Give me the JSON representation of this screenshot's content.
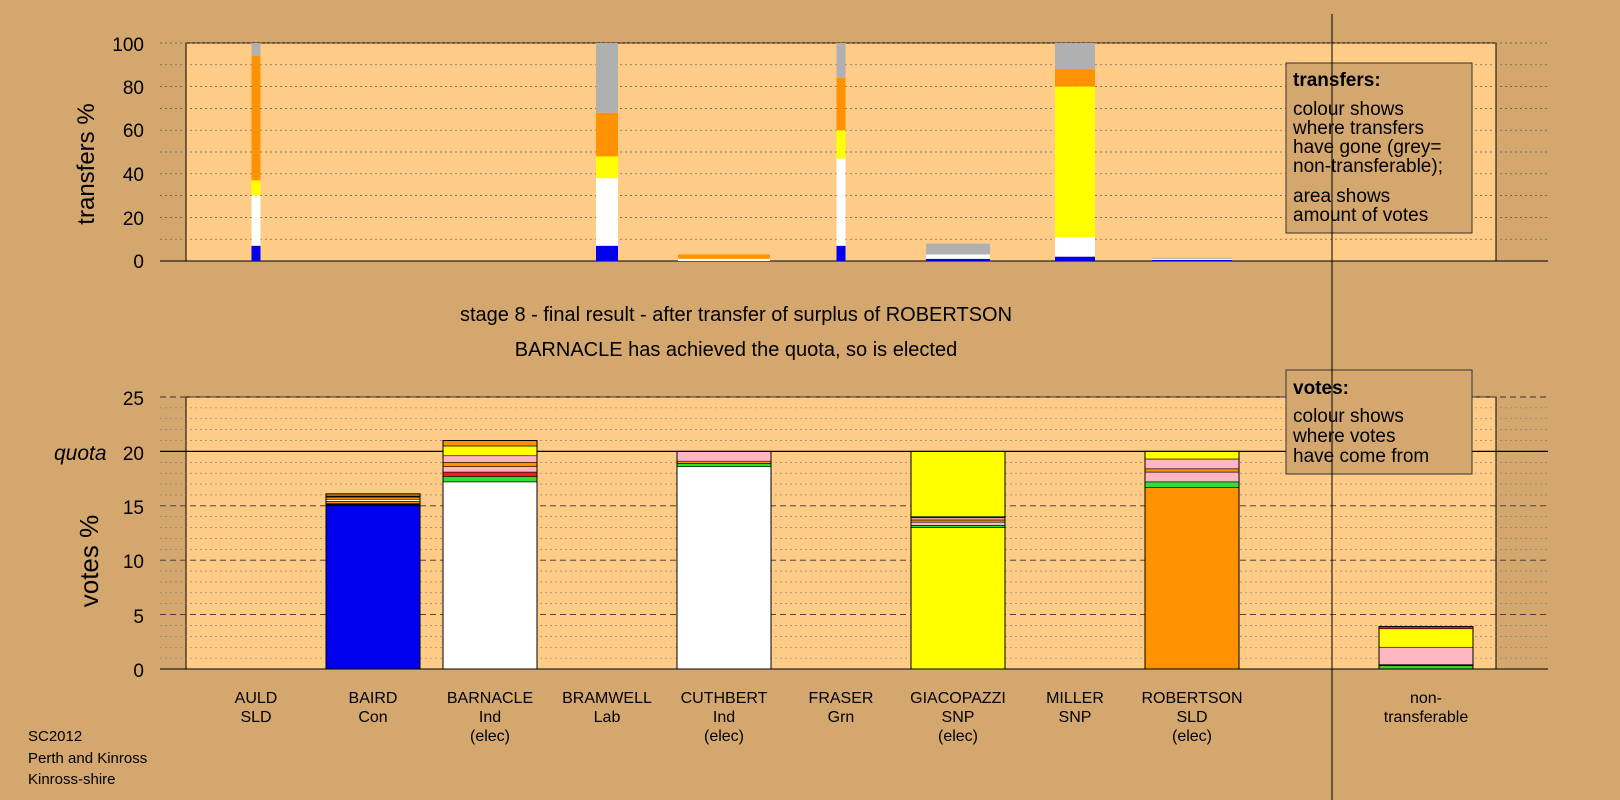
{
  "colors": {
    "background": "#d4a76f",
    "plot_bg": "#ffcc88",
    "box_bg": "#d4a76f",
    "Con": "#0000ee",
    "Ind": "#ffffff",
    "Lab": "#ff1a1a",
    "SNP": "#ffff00",
    "SLD": "#ff9200",
    "Grn": "#33dd33",
    "Pink": "#ffb6c1",
    "Grey": "#b0b0b0",
    "Black": "#000000"
  },
  "titles": {
    "stage": "stage 8 - final result - after transfer of surplus of ROBERTSON",
    "elected": "BARNACLE has achieved the quota, so is elected"
  },
  "top_chart": {
    "ylabel": "transfers %",
    "yticks": [
      "0",
      "20",
      "40",
      "60",
      "80",
      "100"
    ],
    "legend": {
      "title": "transfers:",
      "lines1": [
        "colour shows",
        "where transfers",
        "have gone (grey=",
        "non-transferable);"
      ],
      "lines2": [
        "area shows",
        "amount of votes"
      ]
    }
  },
  "bottom_chart": {
    "ylabel": "votes %",
    "quota_label": "quota",
    "yticks": [
      "0",
      "5",
      "10",
      "15",
      "20",
      "25"
    ],
    "legend": {
      "title": "votes:",
      "lines": [
        "colour shows",
        "where votes",
        "have come from"
      ]
    }
  },
  "candidates": [
    {
      "name": "AULD",
      "party": "SLD",
      "status": ""
    },
    {
      "name": "BAIRD",
      "party": "Con",
      "status": ""
    },
    {
      "name": "BARNACLE",
      "party": "Ind",
      "status": "(elec)"
    },
    {
      "name": "BRAMWELL",
      "party": "Lab",
      "status": ""
    },
    {
      "name": "CUTHBERT",
      "party": "Ind",
      "status": "(elec)"
    },
    {
      "name": "FRASER",
      "party": "Grn",
      "status": ""
    },
    {
      "name": "GIACOPAZZI",
      "party": "SNP",
      "status": "(elec)"
    },
    {
      "name": "MILLER",
      "party": "SNP",
      "status": ""
    },
    {
      "name": "ROBERTSON",
      "party": "SLD",
      "status": "(elec)"
    },
    {
      "name": "non-",
      "party": "transferable",
      "status": ""
    }
  ],
  "footer": [
    "SC2012",
    "Perth and Kinross",
    "Kinross-shire"
  ],
  "chart_data": [
    {
      "type": "bar",
      "title": "",
      "ylabel": "transfers %",
      "ylim": [
        0,
        100
      ],
      "categories": [
        "AULD",
        "BAIRD",
        "BARNACLE",
        "BRAMWELL",
        "CUTHBERT",
        "FRASER",
        "GIACOPAZZI",
        "MILLER",
        "ROBERTSON",
        "non-transferable"
      ],
      "stacked_transfer_bars": [
        {
          "slot": 0,
          "segments": [
            {
              "color": "Con",
              "value": 7
            },
            {
              "color": "Ind",
              "value": 23
            },
            {
              "color": "SNP",
              "value": 7
            },
            {
              "color": "SLD",
              "value": 57
            },
            {
              "color": "Grey",
              "value": 6
            }
          ]
        },
        {
          "slot": 3,
          "segments": [
            {
              "color": "Con",
              "value": 7
            },
            {
              "color": "Ind",
              "value": 31
            },
            {
              "color": "SNP",
              "value": 10
            },
            {
              "color": "SLD",
              "value": 20
            },
            {
              "color": "Grey",
              "value": 32
            }
          ]
        },
        {
          "slot": 4,
          "segments": [
            {
              "color": "Ind",
              "value": 1
            },
            {
              "color": "SLD",
              "value": 2
            }
          ]
        },
        {
          "slot": 5,
          "segments": [
            {
              "color": "Con",
              "value": 7
            },
            {
              "color": "Ind",
              "value": 40
            },
            {
              "color": "SNP",
              "value": 13
            },
            {
              "color": "SLD",
              "value": 24
            },
            {
              "color": "Grey",
              "value": 16
            }
          ]
        },
        {
          "slot": 6,
          "segments": [
            {
              "color": "Con",
              "value": 1
            },
            {
              "color": "Ind",
              "value": 2
            },
            {
              "color": "Grey",
              "value": 5
            }
          ]
        },
        {
          "slot": 7,
          "segments": [
            {
              "color": "Con",
              "value": 2
            },
            {
              "color": "Ind",
              "value": 9
            },
            {
              "color": "SNP",
              "value": 69
            },
            {
              "color": "SLD",
              "value": 8
            },
            {
              "color": "Grey",
              "value": 12
            }
          ]
        },
        {
          "slot": 8,
          "segments": [
            {
              "color": "Con",
              "value": 0.5
            },
            {
              "color": "Ind",
              "value": 0.5
            },
            {
              "color": "Grey",
              "value": 0.5
            }
          ]
        }
      ]
    },
    {
      "type": "bar",
      "title": "",
      "ylabel": "votes %",
      "ylim": [
        0,
        25
      ],
      "quota": 20,
      "categories": [
        "AULD",
        "BAIRD",
        "BARNACLE",
        "BRAMWELL",
        "CUTHBERT",
        "FRASER",
        "GIACOPAZZI",
        "MILLER",
        "ROBERTSON",
        "non-transferable"
      ],
      "stacked_vote_bars": [
        {
          "slot": 1,
          "segments": [
            {
              "color": "Con",
              "value": 15.0
            },
            {
              "color": "Black",
              "value": 0.2
            },
            {
              "color": "SLD",
              "value": 0.2
            },
            {
              "color": "Ind",
              "value": 0.2
            },
            {
              "color": "SLD",
              "value": 0.2
            },
            {
              "color": "Black",
              "value": 0.1
            },
            {
              "color": "SLD",
              "value": 0.2
            }
          ]
        },
        {
          "slot": 2,
          "segments": [
            {
              "color": "Ind",
              "value": 17.2
            },
            {
              "color": "Grn",
              "value": 0.5
            },
            {
              "color": "Lab",
              "value": 0.4
            },
            {
              "color": "Pink",
              "value": 0.5
            },
            {
              "color": "SLD",
              "value": 0.4
            },
            {
              "color": "Pink",
              "value": 0.6
            },
            {
              "color": "SNP",
              "value": 0.9
            },
            {
              "color": "SLD",
              "value": 0.5
            }
          ]
        },
        {
          "slot": 4,
          "segments": [
            {
              "color": "Ind",
              "value": 18.6
            },
            {
              "color": "Grn",
              "value": 0.3
            },
            {
              "color": "SLD",
              "value": 0.2
            },
            {
              "color": "Pink",
              "value": 0.9
            }
          ]
        },
        {
          "slot": 6,
          "segments": [
            {
              "color": "SNP",
              "value": 13.0
            },
            {
              "color": "Grn",
              "value": 0.2
            },
            {
              "color": "Pink",
              "value": 0.3
            },
            {
              "color": "SLD",
              "value": 0.2
            },
            {
              "color": "Pink",
              "value": 0.2
            },
            {
              "color": "Con",
              "value": 0.1
            },
            {
              "color": "SNP",
              "value": 6.0
            }
          ]
        },
        {
          "slot": 8,
          "segments": [
            {
              "color": "SLD",
              "value": 16.7
            },
            {
              "color": "Grn",
              "value": 0.5
            },
            {
              "color": "Pink",
              "value": 0.9
            },
            {
              "color": "SLD",
              "value": 0.3
            },
            {
              "color": "Pink",
              "value": 0.9
            },
            {
              "color": "SNP",
              "value": 0.7
            }
          ]
        },
        {
          "slot": 9,
          "segments": [
            {
              "color": "Grn",
              "value": 0.3
            },
            {
              "color": "Con",
              "value": 0.1
            },
            {
              "color": "Pink",
              "value": 1.6
            },
            {
              "color": "SNP",
              "value": 1.7
            },
            {
              "color": "Lab",
              "value": 0.2
            }
          ]
        }
      ]
    }
  ]
}
